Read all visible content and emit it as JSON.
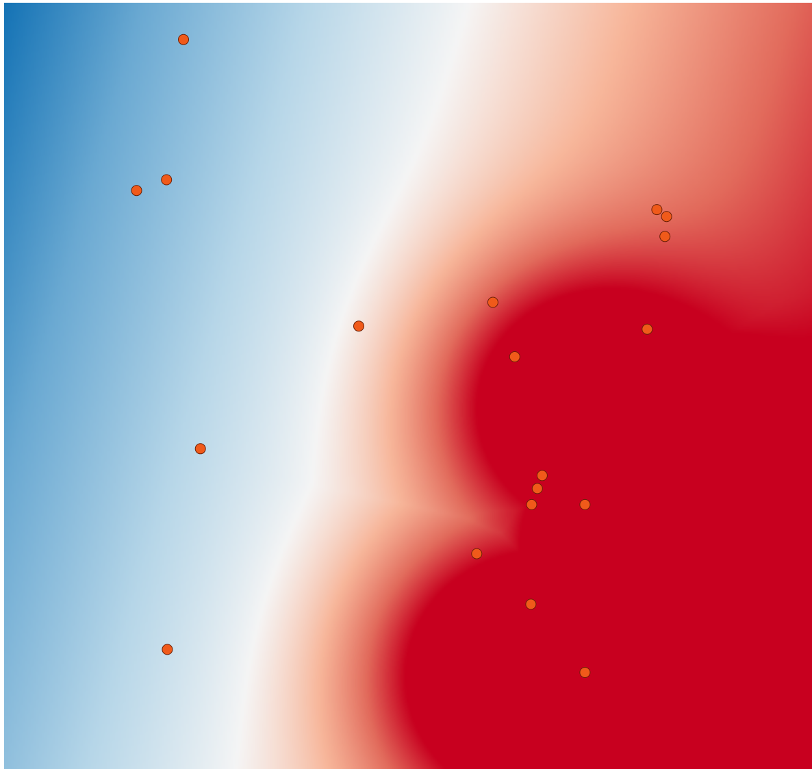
{
  "chart_data": {
    "type": "heatmap",
    "title": "",
    "xlabel": "",
    "ylabel": "",
    "grid": false,
    "legend": "none",
    "xlim": [
      0,
      1
    ],
    "ylim": [
      0,
      1
    ],
    "colormap": {
      "name": "diverging-blue-white-red",
      "stops": [
        "#0569b0",
        "#6aa9d2",
        "#b6d6e8",
        "#f5f5f5",
        "#f7b69a",
        "#e26b5c",
        "#c8001f"
      ]
    },
    "surface": {
      "baseline": {
        "value": -0.95,
        "grad_x": 1.65,
        "grad_y": 0.45
      },
      "hotspots": [
        {
          "x": 0.7,
          "y": 0.52,
          "sigma": 0.13,
          "amp": 1.1
        },
        {
          "x": 0.8,
          "y": 0.61,
          "sigma": 0.12,
          "amp": 1.15
        },
        {
          "x": 0.77,
          "y": 0.7,
          "sigma": 0.12,
          "amp": 1.05
        },
        {
          "x": 0.62,
          "y": 0.87,
          "sigma": 0.13,
          "amp": 1.15
        },
        {
          "x": 0.78,
          "y": 0.96,
          "sigma": 0.13,
          "amp": 1.1
        },
        {
          "x": 0.66,
          "y": 0.66,
          "sigma": 0.09,
          "amp": 0.55
        }
      ]
    },
    "point_style": {
      "fill": "#f05a1a",
      "stroke": "#6b1f05"
    },
    "points": [
      {
        "x": 0.222,
        "y": 0.048
      },
      {
        "x": 0.164,
        "y": 0.245
      },
      {
        "x": 0.201,
        "y": 0.231
      },
      {
        "x": 0.243,
        "y": 0.582
      },
      {
        "x": 0.202,
        "y": 0.844
      },
      {
        "x": 0.439,
        "y": 0.422
      },
      {
        "x": 0.605,
        "y": 0.391
      },
      {
        "x": 0.632,
        "y": 0.462
      },
      {
        "x": 0.666,
        "y": 0.617
      },
      {
        "x": 0.66,
        "y": 0.634
      },
      {
        "x": 0.653,
        "y": 0.655
      },
      {
        "x": 0.719,
        "y": 0.655
      },
      {
        "x": 0.585,
        "y": 0.719
      },
      {
        "x": 0.652,
        "y": 0.785
      },
      {
        "x": 0.719,
        "y": 0.874
      },
      {
        "x": 0.796,
        "y": 0.426
      },
      {
        "x": 0.808,
        "y": 0.27
      },
      {
        "x": 0.82,
        "y": 0.279
      },
      {
        "x": 0.818,
        "y": 0.305
      }
    ]
  }
}
